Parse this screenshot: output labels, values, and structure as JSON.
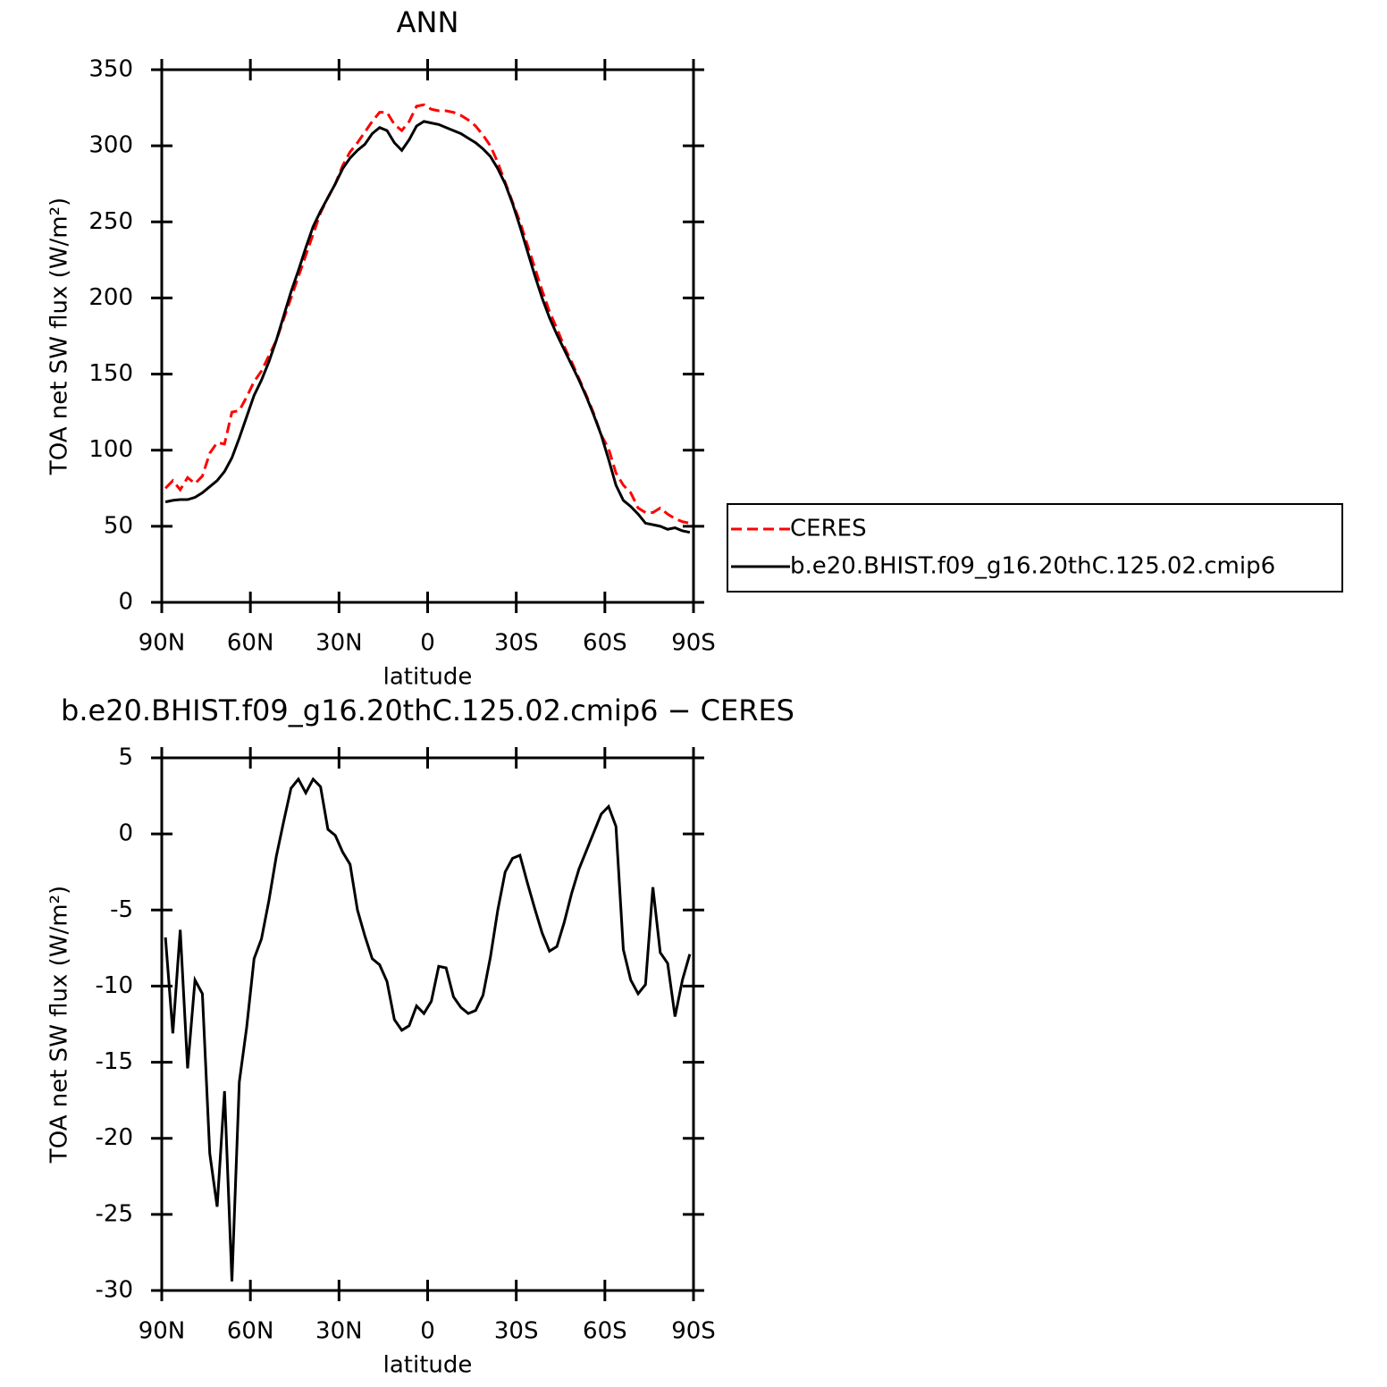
{
  "chart_data": [
    {
      "type": "line",
      "title": "ANN",
      "xlabel": "latitude",
      "ylabel": "TOA net SW flux (W/m²)",
      "x": [
        88.75,
        86.25,
        83.75,
        81.25,
        78.75,
        76.25,
        73.75,
        71.25,
        68.75,
        66.25,
        63.75,
        61.25,
        58.75,
        56.25,
        53.75,
        51.25,
        48.75,
        46.25,
        43.75,
        41.25,
        38.75,
        36.25,
        33.75,
        31.25,
        28.75,
        26.25,
        23.75,
        21.25,
        18.75,
        16.25,
        13.75,
        11.25,
        8.75,
        6.25,
        3.75,
        1.25,
        -1.25,
        -3.75,
        -6.25,
        -8.75,
        -11.25,
        -13.75,
        -16.25,
        -18.75,
        -21.25,
        -23.75,
        -26.25,
        -28.75,
        -31.25,
        -33.75,
        -36.25,
        -38.75,
        -41.25,
        -43.75,
        -46.25,
        -48.75,
        -51.25,
        -53.75,
        -56.25,
        -58.75,
        -61.25,
        -63.75,
        -66.25,
        -68.75,
        -71.25,
        -73.75,
        -76.25,
        -78.75,
        -81.25,
        -83.75,
        -86.25,
        -88.75
      ],
      "xlim": [
        90,
        -90
      ],
      "xticks": [
        {
          "value": 90,
          "label": "90N"
        },
        {
          "value": 60,
          "label": "60N"
        },
        {
          "value": 30,
          "label": "30N"
        },
        0,
        {
          "value": -30,
          "label": "30S"
        },
        {
          "value": -60,
          "label": "60S"
        },
        {
          "value": -90,
          "label": "90S"
        }
      ],
      "ylim": [
        0,
        350
      ],
      "yticks": [
        0,
        50,
        100,
        150,
        200,
        250,
        300,
        350
      ],
      "legend": "right",
      "series": [
        {
          "name": "CERES",
          "color": "#ff0000",
          "dash": "dashed",
          "values": [
            75,
            80,
            74,
            82,
            78,
            83,
            98,
            105,
            104,
            125,
            126,
            135,
            145,
            152,
            162,
            172,
            186,
            200,
            214,
            228,
            242,
            256,
            266,
            275,
            287,
            296,
            302,
            309,
            316,
            322,
            322,
            314,
            310,
            316,
            326,
            327,
            324,
            323,
            323,
            322,
            320,
            317,
            313,
            307,
            300,
            289,
            276,
            263,
            250,
            235,
            220,
            205,
            191,
            180,
            168,
            158,
            147,
            136,
            124,
            110,
            101,
            85,
            77,
            72,
            62,
            59,
            59,
            62,
            58,
            55,
            53,
            52
          ]
        },
        {
          "name": "b.e20.BHIST.f09_g16.20thC.125.02.cmip6",
          "color": "#000000",
          "values": [
            66,
            67,
            67.5,
            67.5,
            69,
            72,
            76,
            80,
            86,
            95,
            108,
            122,
            136,
            146,
            158,
            172,
            188,
            204,
            218,
            233,
            247,
            257,
            266,
            275,
            285,
            292,
            297,
            301,
            308,
            312,
            310,
            302,
            297,
            304,
            313,
            316,
            315,
            314,
            312,
            310,
            308,
            305,
            302,
            298,
            293,
            285,
            275,
            262,
            247,
            231,
            215,
            200,
            187,
            176,
            166,
            156,
            146,
            135,
            123,
            110,
            94,
            77,
            67,
            63,
            58,
            52,
            51,
            50,
            48,
            49,
            47,
            46
          ]
        }
      ]
    },
    {
      "type": "line",
      "title": "b.e20.BHIST.f09_g16.20thC.125.02.cmip6 − CERES",
      "xlabel": "latitude",
      "ylabel": "TOA net SW flux (W/m²)",
      "x": [
        88.75,
        86.25,
        83.75,
        81.25,
        78.75,
        76.25,
        73.75,
        71.25,
        68.75,
        66.25,
        63.75,
        61.25,
        58.75,
        56.25,
        53.75,
        51.25,
        48.75,
        46.25,
        43.75,
        41.25,
        38.75,
        36.25,
        33.75,
        31.25,
        28.75,
        26.25,
        23.75,
        21.25,
        18.75,
        16.25,
        13.75,
        11.25,
        8.75,
        6.25,
        3.75,
        1.25,
        -1.25,
        -3.75,
        -6.25,
        -8.75,
        -11.25,
        -13.75,
        -16.25,
        -18.75,
        -21.25,
        -23.75,
        -26.25,
        -28.75,
        -31.25,
        -33.75,
        -36.25,
        -38.75,
        -41.25,
        -43.75,
        -46.25,
        -48.75,
        -51.25,
        -53.75,
        -56.25,
        -58.75,
        -61.25,
        -63.75,
        -66.25,
        -68.75,
        -71.25,
        -73.75,
        -76.25,
        -78.75,
        -81.25,
        -83.75,
        -86.25,
        -88.75
      ],
      "xlim": [
        90,
        -90
      ],
      "xticks": [
        {
          "value": 90,
          "label": "90N"
        },
        {
          "value": 60,
          "label": "60N"
        },
        {
          "value": 30,
          "label": "30N"
        },
        0,
        {
          "value": -30,
          "label": "30S"
        },
        {
          "value": -60,
          "label": "60S"
        },
        {
          "value": -90,
          "label": "90S"
        }
      ],
      "ylim": [
        -30,
        5
      ],
      "yticks": [
        -30,
        -25,
        -20,
        -15,
        -10,
        -5,
        0,
        5
      ],
      "color": "#000000",
      "values": [
        -6.8,
        -13.1,
        -6.3,
        -15.4,
        -9.6,
        -10.5,
        -21.0,
        -24.5,
        -16.9,
        -29.4,
        -16.3,
        -12.7,
        -8.2,
        -6.9,
        -4.4,
        -1.5,
        0.8,
        3.0,
        3.6,
        2.7,
        3.6,
        3.1,
        0.3,
        -0.1,
        -1.2,
        -2.0,
        -5.0,
        -6.7,
        -8.2,
        -8.6,
        -9.7,
        -12.2,
        -12.9,
        -12.6,
        -11.3,
        -11.8,
        -11.0,
        -8.7,
        -8.8,
        -10.7,
        -11.4,
        -11.8,
        -11.6,
        -10.6,
        -8.1,
        -5.0,
        -2.5,
        -1.6,
        -1.4,
        -3.2,
        -4.9,
        -6.5,
        -7.7,
        -7.4,
        -5.8,
        -3.9,
        -2.3,
        -1.1,
        0.1,
        1.3,
        1.8,
        0.5,
        -7.6,
        -9.6,
        -10.5,
        -9.9,
        -3.5,
        -7.8,
        -8.5,
        -12.0,
        -9.6,
        -7.9
      ]
    }
  ]
}
